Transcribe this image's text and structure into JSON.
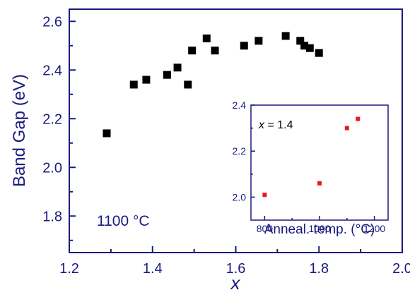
{
  "chart_data": [
    {
      "type": "scatter",
      "xlabel": "x",
      "ylabel": "Band Gap (eV)",
      "xlim": [
        1.2,
        2.0
      ],
      "ylim": [
        1.65,
        2.65
      ],
      "xticks": [
        1.2,
        1.4,
        1.6,
        1.8,
        2.0
      ],
      "xtick_labels": [
        "1.2",
        "1.4",
        "1.6",
        "1.8",
        "2.0"
      ],
      "yticks": [
        1.8,
        2.0,
        2.2,
        2.4,
        2.6
      ],
      "ytick_labels": [
        "1.8",
        "2.0",
        "2.2",
        "2.4",
        "2.6"
      ],
      "annotation": "1100 °C",
      "grid": false,
      "marker_color": "#000000",
      "axis_color": "#1a1a80",
      "points": [
        {
          "x": 1.29,
          "y": 2.14
        },
        {
          "x": 1.355,
          "y": 2.34
        },
        {
          "x": 1.385,
          "y": 2.36
        },
        {
          "x": 1.435,
          "y": 2.38
        },
        {
          "x": 1.46,
          "y": 2.41
        },
        {
          "x": 1.485,
          "y": 2.34
        },
        {
          "x": 1.495,
          "y": 2.48
        },
        {
          "x": 1.53,
          "y": 2.53
        },
        {
          "x": 1.55,
          "y": 2.48
        },
        {
          "x": 1.62,
          "y": 2.5
        },
        {
          "x": 1.655,
          "y": 2.52
        },
        {
          "x": 1.72,
          "y": 2.54
        },
        {
          "x": 1.755,
          "y": 2.52
        },
        {
          "x": 1.765,
          "y": 2.5
        },
        {
          "x": 1.778,
          "y": 2.49
        },
        {
          "x": 1.8,
          "y": 2.47
        }
      ]
    },
    {
      "type": "scatter",
      "inset": true,
      "xlabel": "Anneal. temp. (°C)",
      "ylabel": "",
      "xlim": [
        750,
        1250
      ],
      "ylim": [
        1.9,
        2.4
      ],
      "xticks": [
        800,
        1000,
        1200
      ],
      "xtick_labels": [
        "800",
        "1000",
        "1200"
      ],
      "yticks": [
        2.0,
        2.2,
        2.4
      ],
      "ytick_labels": [
        "2.0",
        "2.2",
        "2.4"
      ],
      "annotation_var": "x",
      "annotation_value": " = 1.4",
      "grid": false,
      "marker_color": "#e8191c",
      "points": [
        {
          "x": 800,
          "y": 2.01
        },
        {
          "x": 1000,
          "y": 2.06
        },
        {
          "x": 1100,
          "y": 2.3
        },
        {
          "x": 1140,
          "y": 2.34
        }
      ]
    }
  ]
}
